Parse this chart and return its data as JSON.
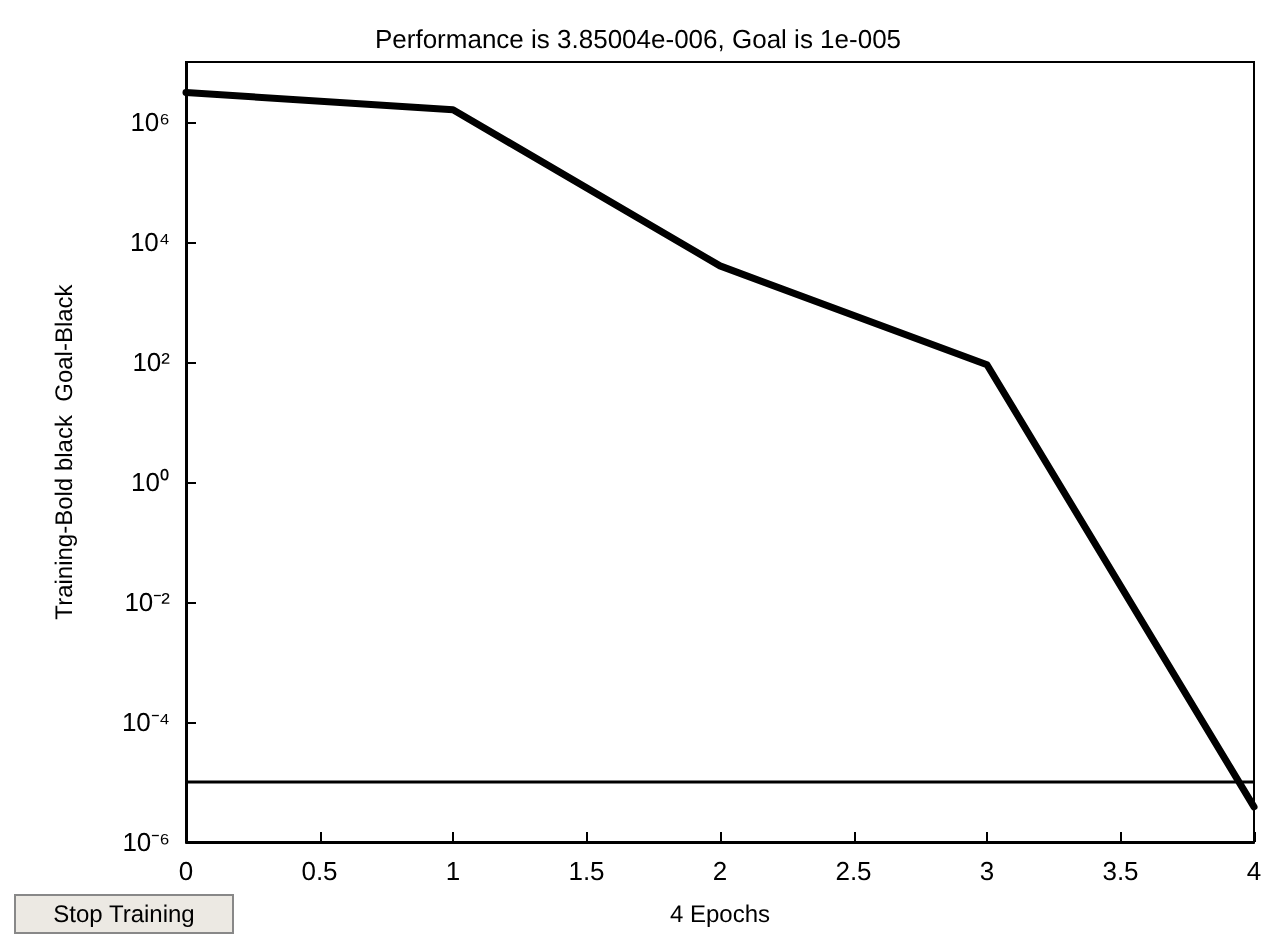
{
  "chart_data": {
    "type": "line",
    "title": "Performance is 3.85004e-006, Goal is 1e-005",
    "xlabel": "4 Epochs",
    "ylabel": "Training-Bold black  Goal-Black",
    "x": [
      0,
      1,
      2,
      3,
      4
    ],
    "series": [
      {
        "color": "#000000",
        "values": [
          3100000,
          1600000,
          4000,
          90,
          3.85e-06
        ]
      }
    ],
    "log": "y",
    "xlim": [
      0,
      4
    ],
    "xticks": [
      0,
      0.5,
      1,
      1.5,
      2,
      2.5,
      3,
      3.5,
      4
    ],
    "ylim": [
      1e-06,
      10000000
    ],
    "yticks": [
      {
        "value": 1e-06,
        "label": "10⁻⁶"
      },
      {
        "value": 0.0001,
        "label": "10⁻⁴"
      },
      {
        "value": 0.01,
        "label": "10⁻²"
      },
      {
        "value": 1,
        "label": "10⁰"
      },
      {
        "value": 100,
        "label": "10²"
      },
      {
        "value": 10000,
        "label": "10⁴"
      },
      {
        "value": 1000000,
        "label": "10⁶"
      }
    ],
    "ref_lines": [
      {
        "axis": "y",
        "value": 1e-05,
        "color": "#000000",
        "line_style": "solid"
      }
    ],
    "grid": false,
    "marker": "none",
    "line_style": "solid",
    "annotations": [
      "Stop Training"
    ]
  }
}
